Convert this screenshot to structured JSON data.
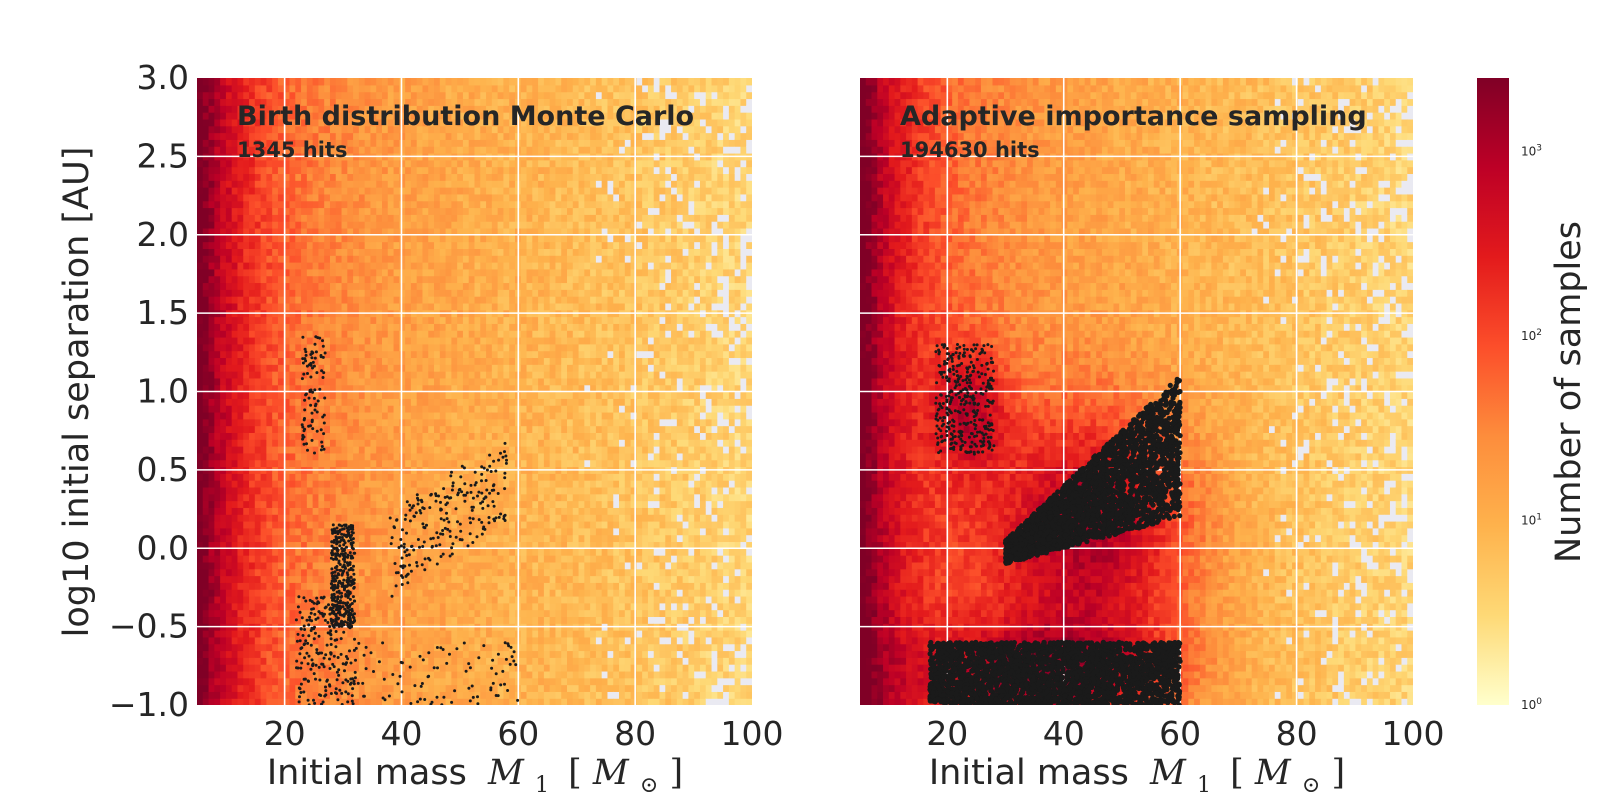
{
  "chart_data": [
    {
      "type": "heatmap",
      "title": "Birth distribution Monte Carlo",
      "subtitle": "1345 hits",
      "xlabel": "Initial mass",
      "xlabel_math": "M",
      "xlabel_sub": "1",
      "xlabel_unit": "M",
      "xlabel_unit_sub": "⊙",
      "ylabel": "log10 initial separation [AU]",
      "xlim": [
        5,
        100
      ],
      "ylim": [
        -1.0,
        3.0
      ],
      "xticks": [
        "20",
        "40",
        "60",
        "80",
        "100"
      ],
      "yticks": [
        "3.0",
        "2.5",
        "2.0",
        "1.5",
        "1.0",
        "0.5",
        "0.0",
        "−0.5",
        "−1.0"
      ],
      "grid": true,
      "overlay": {
        "type": "scatter",
        "color": "#1a1a1a",
        "regions": [
          {
            "x": [
              22,
              32
            ],
            "y": [
              -1.0,
              -0.3
            ],
            "density": "medium"
          },
          {
            "x": [
              28,
              32
            ],
            "y": [
              -0.5,
              0.15
            ],
            "density": "high"
          },
          {
            "x": [
              32,
              60
            ],
            "y": [
              -1.0,
              -0.6
            ],
            "density": "low"
          },
          {
            "x": [
              38,
              58
            ],
            "y": [
              0.0,
              0.9
            ],
            "density": "medium"
          },
          {
            "x": [
              23,
              27
            ],
            "y": [
              0.6,
              1.35
            ],
            "density": "low"
          }
        ]
      }
    },
    {
      "type": "heatmap",
      "title": "Adaptive importance sampling",
      "subtitle": "194630 hits",
      "xlabel": "Initial mass",
      "xlabel_math": "M",
      "xlabel_sub": "1",
      "xlabel_unit": "M",
      "xlabel_unit_sub": "⊙",
      "xlim": [
        5,
        100
      ],
      "ylim": [
        -1.0,
        3.0
      ],
      "xticks": [
        "20",
        "40",
        "60",
        "80",
        "100"
      ],
      "grid": true,
      "overlay": {
        "type": "scatter",
        "color": "#1a1a1a",
        "regions": [
          {
            "x": [
              17,
              60
            ],
            "y": [
              -1.0,
              -0.6
            ],
            "density": "very-high"
          },
          {
            "x": [
              30,
              60
            ],
            "y": [
              0.2,
              1.1
            ],
            "density": "very-high"
          },
          {
            "x": [
              18,
              28
            ],
            "y": [
              0.6,
              1.3
            ],
            "density": "high"
          }
        ]
      }
    }
  ],
  "colorbar": {
    "label": "Number of samples",
    "scale": "log",
    "range": [
      1,
      2500
    ],
    "tick_base": "10",
    "tick_exponents": [
      "3",
      "2",
      "1",
      "0"
    ],
    "colors": [
      "#ffffcc",
      "#fed976",
      "#feb24c",
      "#fd8d3c",
      "#fc4e2a",
      "#e31a1c",
      "#bd0026",
      "#800026"
    ]
  }
}
